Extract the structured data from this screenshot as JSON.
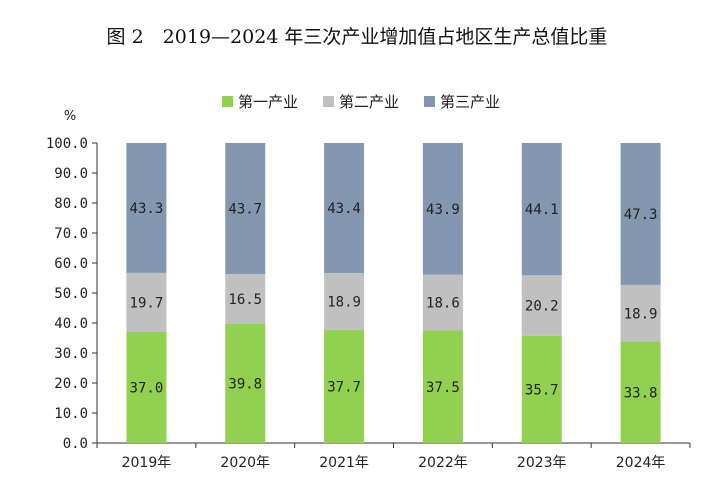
{
  "chart_data": {
    "type": "bar",
    "stacked": true,
    "title": "图 2　2019—2024 年三次产业增加值占地区生产总值比重",
    "ylabel": "%",
    "xlabel": "",
    "ylim": [
      0,
      100
    ],
    "yticks": [
      "0.0",
      "10.0",
      "20.0",
      "30.0",
      "40.0",
      "50.0",
      "60.0",
      "70.0",
      "80.0",
      "90.0",
      "100.0"
    ],
    "categories": [
      "2019年",
      "2020年",
      "2021年",
      "2022年",
      "2023年",
      "2024年"
    ],
    "legend_position": "top",
    "grid": false,
    "series": [
      {
        "name": "第一产业",
        "color": "#92d050",
        "values": [
          37.0,
          39.8,
          37.7,
          37.5,
          35.7,
          33.8
        ],
        "labels": [
          "37.0",
          "39.8",
          "37.7",
          "37.5",
          "35.7",
          "33.8"
        ]
      },
      {
        "name": "第二产业",
        "color": "#c0c0c0",
        "values": [
          19.7,
          16.5,
          18.9,
          18.6,
          20.2,
          18.9
        ],
        "labels": [
          "19.7",
          "16.5",
          "18.9",
          "18.6",
          "20.2",
          "18.9"
        ]
      },
      {
        "name": "第三产业",
        "color": "#8497b0",
        "values": [
          43.3,
          43.7,
          43.4,
          43.9,
          44.1,
          47.3
        ],
        "labels": [
          "43.3",
          "43.7",
          "43.4",
          "43.9",
          "44.1",
          "47.3"
        ]
      }
    ]
  }
}
